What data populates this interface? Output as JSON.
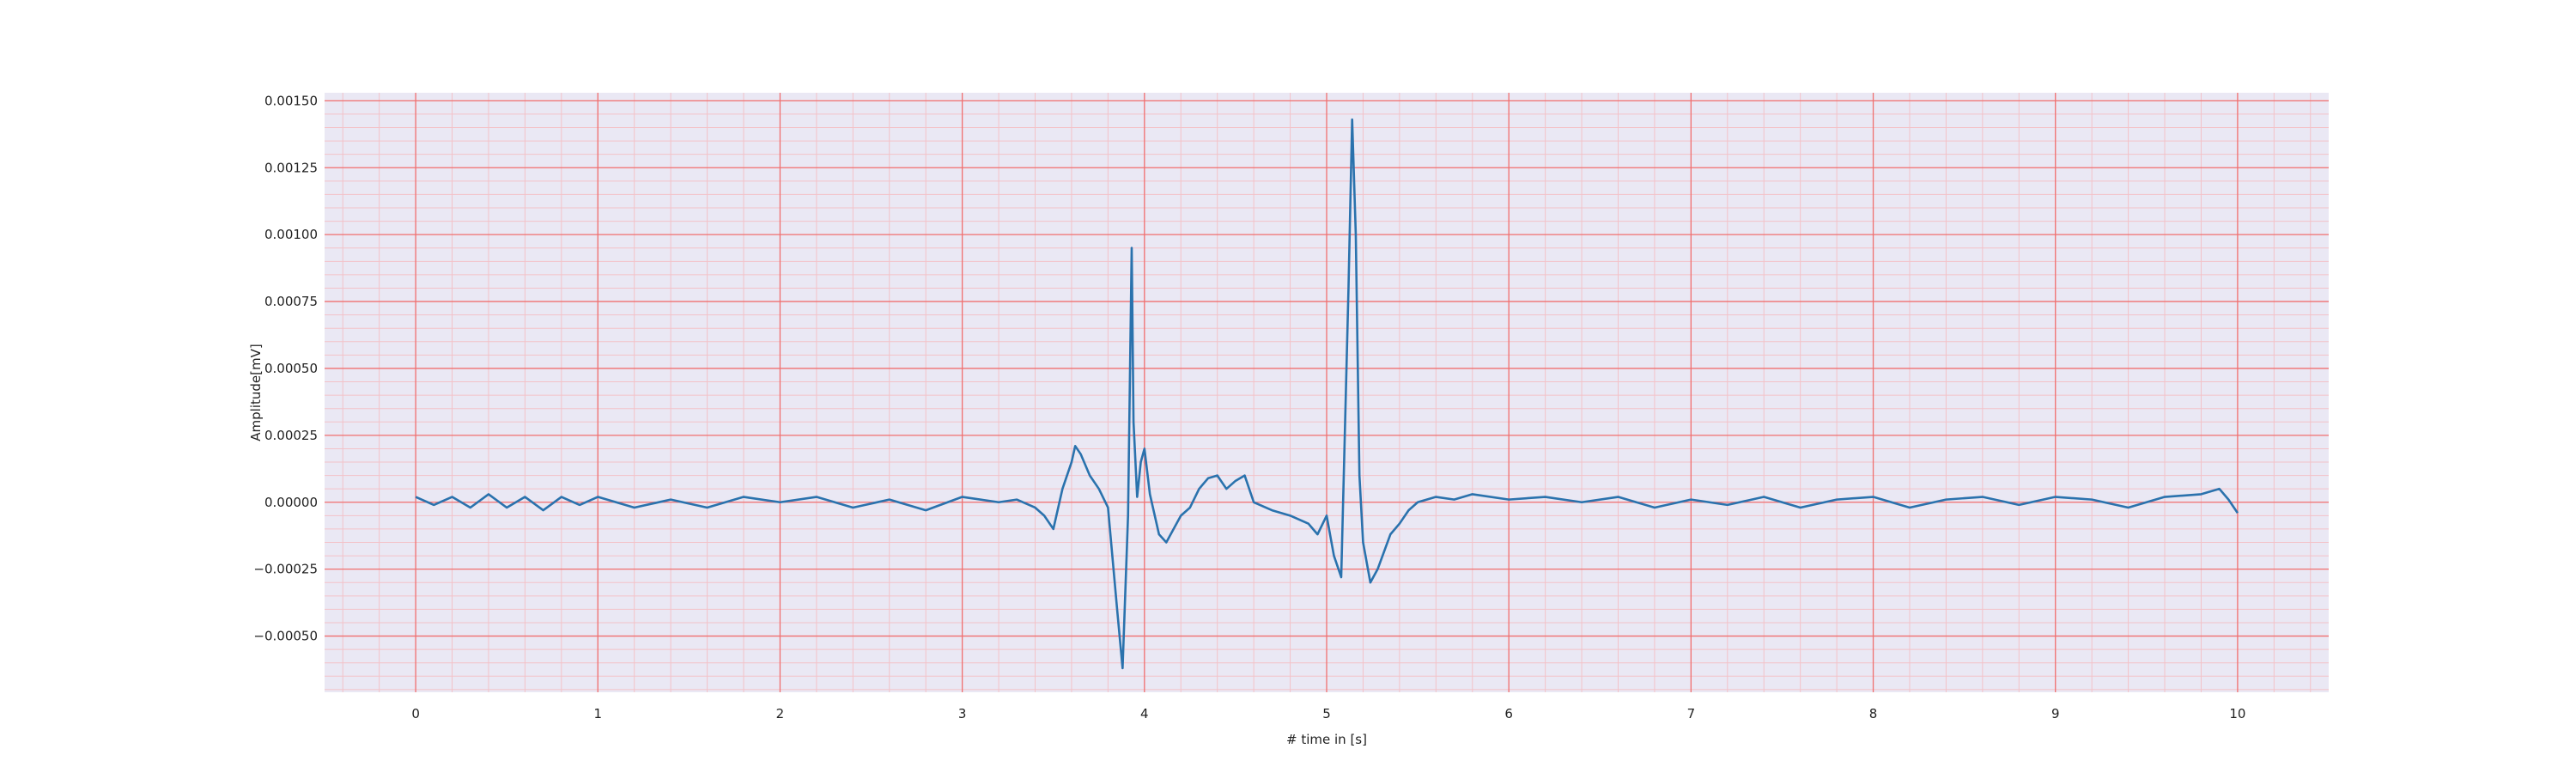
{
  "chart_data": {
    "type": "line",
    "title": "",
    "xlabel": "# time in [s]",
    "ylabel": "Amplitude[mV]",
    "xlim": [
      -0.5,
      10.5
    ],
    "ylim": [
      -0.00071,
      0.00153
    ],
    "x_ticks": [
      0,
      1,
      2,
      3,
      4,
      5,
      6,
      7,
      8,
      9,
      10
    ],
    "x_tick_labels": [
      "0",
      "1",
      "2",
      "3",
      "4",
      "5",
      "6",
      "7",
      "8",
      "9",
      "10"
    ],
    "y_ticks": [
      -0.0005,
      -0.00025,
      0,
      0.00025,
      0.0005,
      0.00075,
      0.001,
      0.00125,
      0.0015
    ],
    "y_tick_labels": [
      "−0.00050",
      "−0.00025",
      "0.00000",
      "0.00025",
      "0.00050",
      "0.00075",
      "0.00100",
      "0.00125",
      "0.00150"
    ],
    "grid": {
      "major": true,
      "minor": true,
      "major_color": "#f07070",
      "minor_color": "#f3c2c8"
    },
    "background_color": "#eae8f4",
    "series": [
      {
        "color": "#2a72ad",
        "x": [
          0,
          0.1,
          0.2,
          0.3,
          0.4,
          0.5,
          0.6,
          0.7,
          0.8,
          0.9,
          1.0,
          1.2,
          1.4,
          1.6,
          1.8,
          2.0,
          2.2,
          2.4,
          2.6,
          2.8,
          3.0,
          3.2,
          3.3,
          3.4,
          3.45,
          3.5,
          3.55,
          3.6,
          3.62,
          3.65,
          3.7,
          3.75,
          3.8,
          3.85,
          3.88,
          3.91,
          3.93,
          3.94,
          3.96,
          3.98,
          4.0,
          4.03,
          4.08,
          4.12,
          4.16,
          4.2,
          4.25,
          4.3,
          4.35,
          4.4,
          4.45,
          4.5,
          4.55,
          4.6,
          4.7,
          4.8,
          4.9,
          4.95,
          5.0,
          5.04,
          5.08,
          5.12,
          5.14,
          5.16,
          5.18,
          5.2,
          5.24,
          5.28,
          5.35,
          5.4,
          5.45,
          5.5,
          5.6,
          5.7,
          5.8,
          6.0,
          6.2,
          6.4,
          6.6,
          6.8,
          7.0,
          7.2,
          7.4,
          7.6,
          7.8,
          8.0,
          8.2,
          8.4,
          8.6,
          8.8,
          9.0,
          9.2,
          9.4,
          9.6,
          9.8,
          9.9,
          9.95,
          10.0
        ],
        "y": [
          2e-05,
          -1e-05,
          2e-05,
          -2e-05,
          3e-05,
          -2e-05,
          2e-05,
          -3e-05,
          2e-05,
          -1e-05,
          2e-05,
          -2e-05,
          1e-05,
          -2e-05,
          2e-05,
          0.0,
          2e-05,
          -2e-05,
          1e-05,
          -3e-05,
          2e-05,
          0.0,
          1e-05,
          -2e-05,
          -5e-05,
          -0.0001,
          5e-05,
          0.00015,
          0.00021,
          0.00018,
          0.0001,
          5e-05,
          -2e-05,
          -0.0004,
          -0.00062,
          -5e-05,
          0.00095,
          0.0003,
          2e-05,
          0.00015,
          0.0002,
          3e-05,
          -0.00012,
          -0.00015,
          -0.0001,
          -5e-05,
          -2e-05,
          5e-05,
          9e-05,
          0.0001,
          5e-05,
          8e-05,
          0.0001,
          0.0,
          -3e-05,
          -5e-05,
          -8e-05,
          -0.00012,
          -5e-05,
          -0.0002,
          -0.00028,
          0.0008,
          0.00143,
          0.001,
          0.0001,
          -0.00015,
          -0.0003,
          -0.00025,
          -0.00012,
          -8e-05,
          -3e-05,
          0.0,
          2e-05,
          1e-05,
          3e-05,
          1e-05,
          2e-05,
          0.0,
          2e-05,
          -2e-05,
          1e-05,
          -1e-05,
          2e-05,
          -2e-05,
          1e-05,
          2e-05,
          -2e-05,
          1e-05,
          2e-05,
          -1e-05,
          2e-05,
          1e-05,
          -2e-05,
          2e-05,
          3e-05,
          5e-05,
          1e-05,
          -4e-05
        ]
      }
    ]
  }
}
